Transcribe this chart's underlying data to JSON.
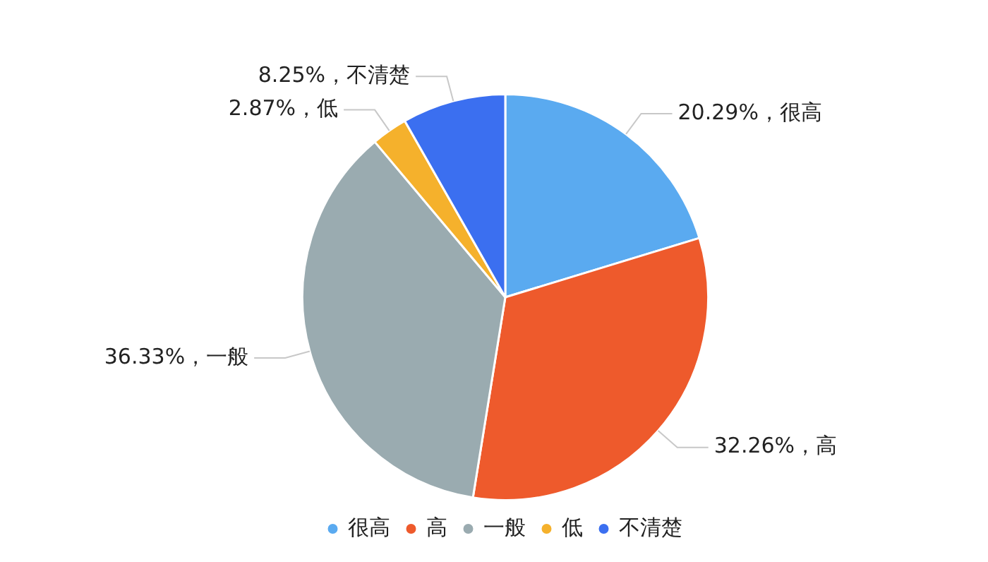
{
  "chart_data": {
    "type": "pie",
    "categories": [
      "很高",
      "高",
      "一般",
      "低",
      "不清楚"
    ],
    "values": [
      20.29,
      32.26,
      36.33,
      2.87,
      8.25
    ],
    "colors": [
      "#5aaaf0",
      "#ee5a2c",
      "#9aabb0",
      "#f5b12c",
      "#3b6ff0"
    ],
    "value_labels": [
      "20.29%，很高",
      "32.26%，高",
      "36.33%，一般",
      "2.87%，低",
      "8.25%，不清楚"
    ],
    "legend": "bottom"
  }
}
